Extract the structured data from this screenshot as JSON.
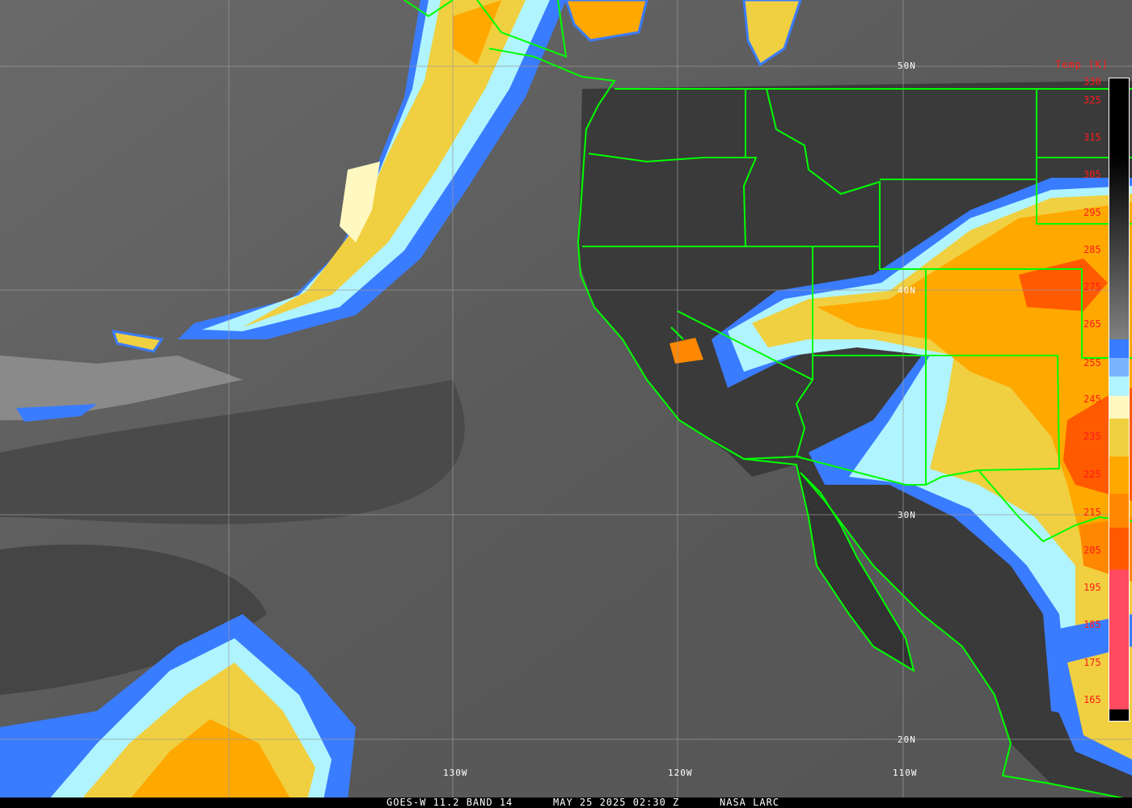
{
  "caption": {
    "satellite": "GOES-W 11.2 BAND 14",
    "datetime": "MAY 25 2025 02:30 Z",
    "source": "NASA LARC"
  },
  "latitude_labels": [
    "50N",
    "40N",
    "30N",
    "20N"
  ],
  "longitude_labels": [
    "130W",
    "120W",
    "110W"
  ],
  "colorbar": {
    "title": "Temp [K]",
    "ticks": [
      "330",
      "325",
      "315",
      "305",
      "295",
      "285",
      "275",
      "265",
      "255",
      "245",
      "235",
      "225",
      "215",
      "205",
      "195",
      "185",
      "175",
      "165"
    ],
    "segments": [
      {
        "color": "#000000",
        "to_color": "#808080",
        "from_k": 330,
        "to_k": 261
      },
      {
        "color": "#3a7cff",
        "from_k": 261,
        "to_k": 256
      },
      {
        "color": "#7ab4ff",
        "from_k": 256,
        "to_k": 251
      },
      {
        "color": "#b0f4ff",
        "from_k": 251,
        "to_k": 246
      },
      {
        "color": "#fff8c0",
        "from_k": 246,
        "to_k": 240
      },
      {
        "color": "#f0d040",
        "from_k": 240,
        "to_k": 230
      },
      {
        "color": "#ffa800",
        "from_k": 230,
        "to_k": 220
      },
      {
        "color": "#ff8800",
        "from_k": 220,
        "to_k": 211
      },
      {
        "color": "#ff5a00",
        "from_k": 211,
        "to_k": 200
      },
      {
        "color": "#ff4a60",
        "from_k": 200,
        "to_k": 163
      },
      {
        "color": "#000000",
        "from_k": 163,
        "to_k": 160
      }
    ]
  },
  "colors": {
    "boundaries": "#00ff00",
    "grid": "#9a9a9a",
    "tick_labels": "#ff1a1a",
    "background_ir": "#5e5e5e"
  }
}
